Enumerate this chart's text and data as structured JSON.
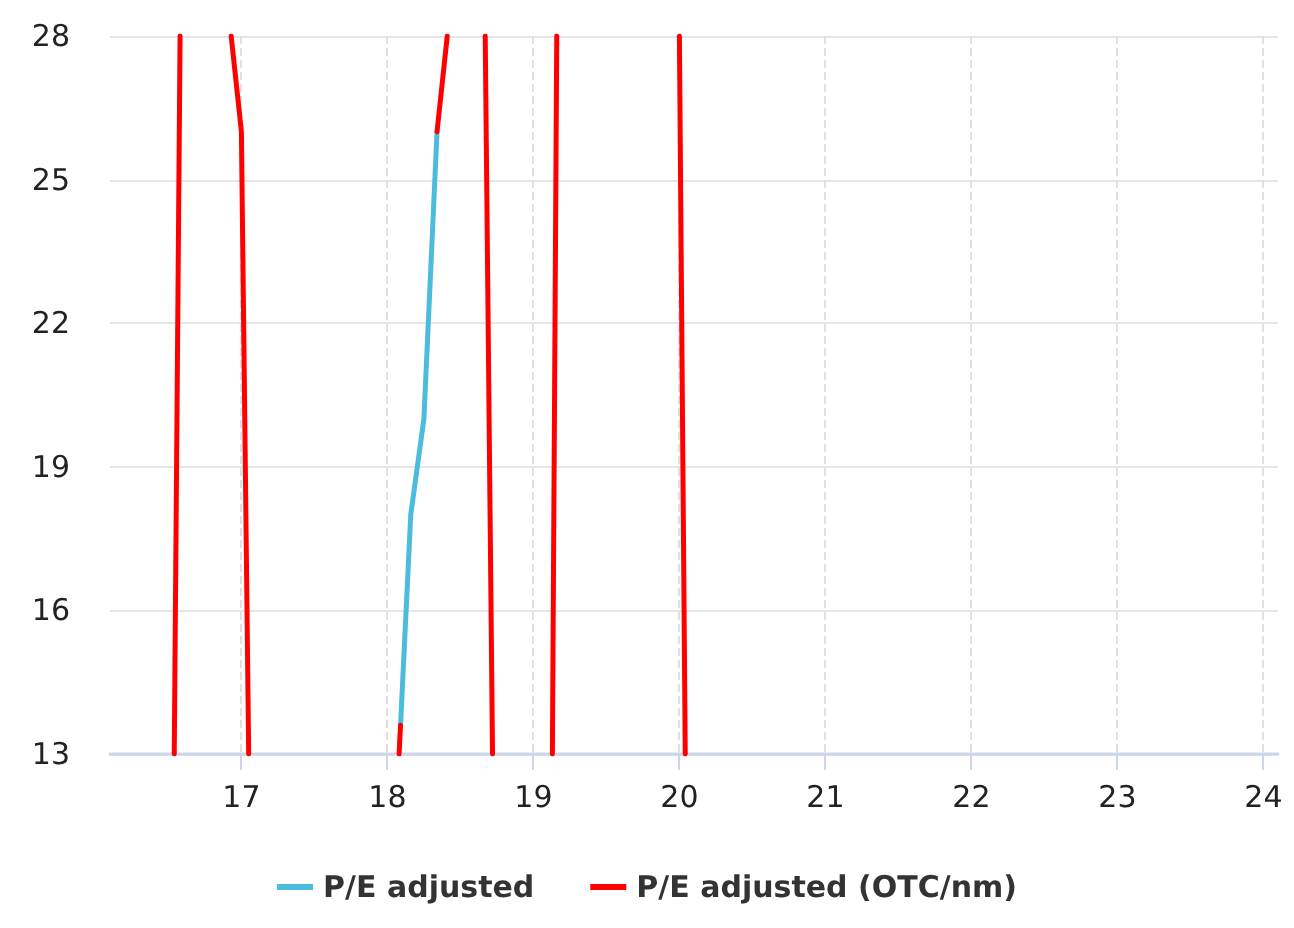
{
  "chart_data": {
    "type": "line",
    "xlim": [
      16.1,
      24.1
    ],
    "xticks": [
      17,
      18,
      19,
      20,
      21,
      22,
      23,
      24
    ],
    "ylim": [
      13,
      28
    ],
    "yticks": [
      13,
      16,
      19,
      22,
      25,
      28
    ],
    "grid": true,
    "legend": "bottom",
    "marker": "none",
    "line_style": "solid",
    "series": [
      {
        "name": "P/E adjusted",
        "color": "#4bbcdc",
        "x": [
          18.09,
          18.16,
          18.25,
          18.34
        ],
        "values": [
          13.6,
          18,
          20,
          26
        ]
      },
      {
        "name": "P/E adjusted (OTC/nm)",
        "color": "#ff0000",
        "x": [
          16.54,
          16.58,
          null,
          16.93,
          17.0,
          17.05,
          null,
          18.08,
          18.09,
          null,
          18.34,
          18.41,
          null,
          18.67,
          18.72,
          null,
          19.13,
          19.16,
          null,
          20.0,
          20.04
        ],
        "values": [
          13,
          28,
          null,
          28,
          26,
          13,
          null,
          13,
          13.6,
          null,
          26,
          28,
          null,
          28,
          13,
          null,
          13,
          28,
          null,
          28,
          13
        ]
      }
    ]
  }
}
